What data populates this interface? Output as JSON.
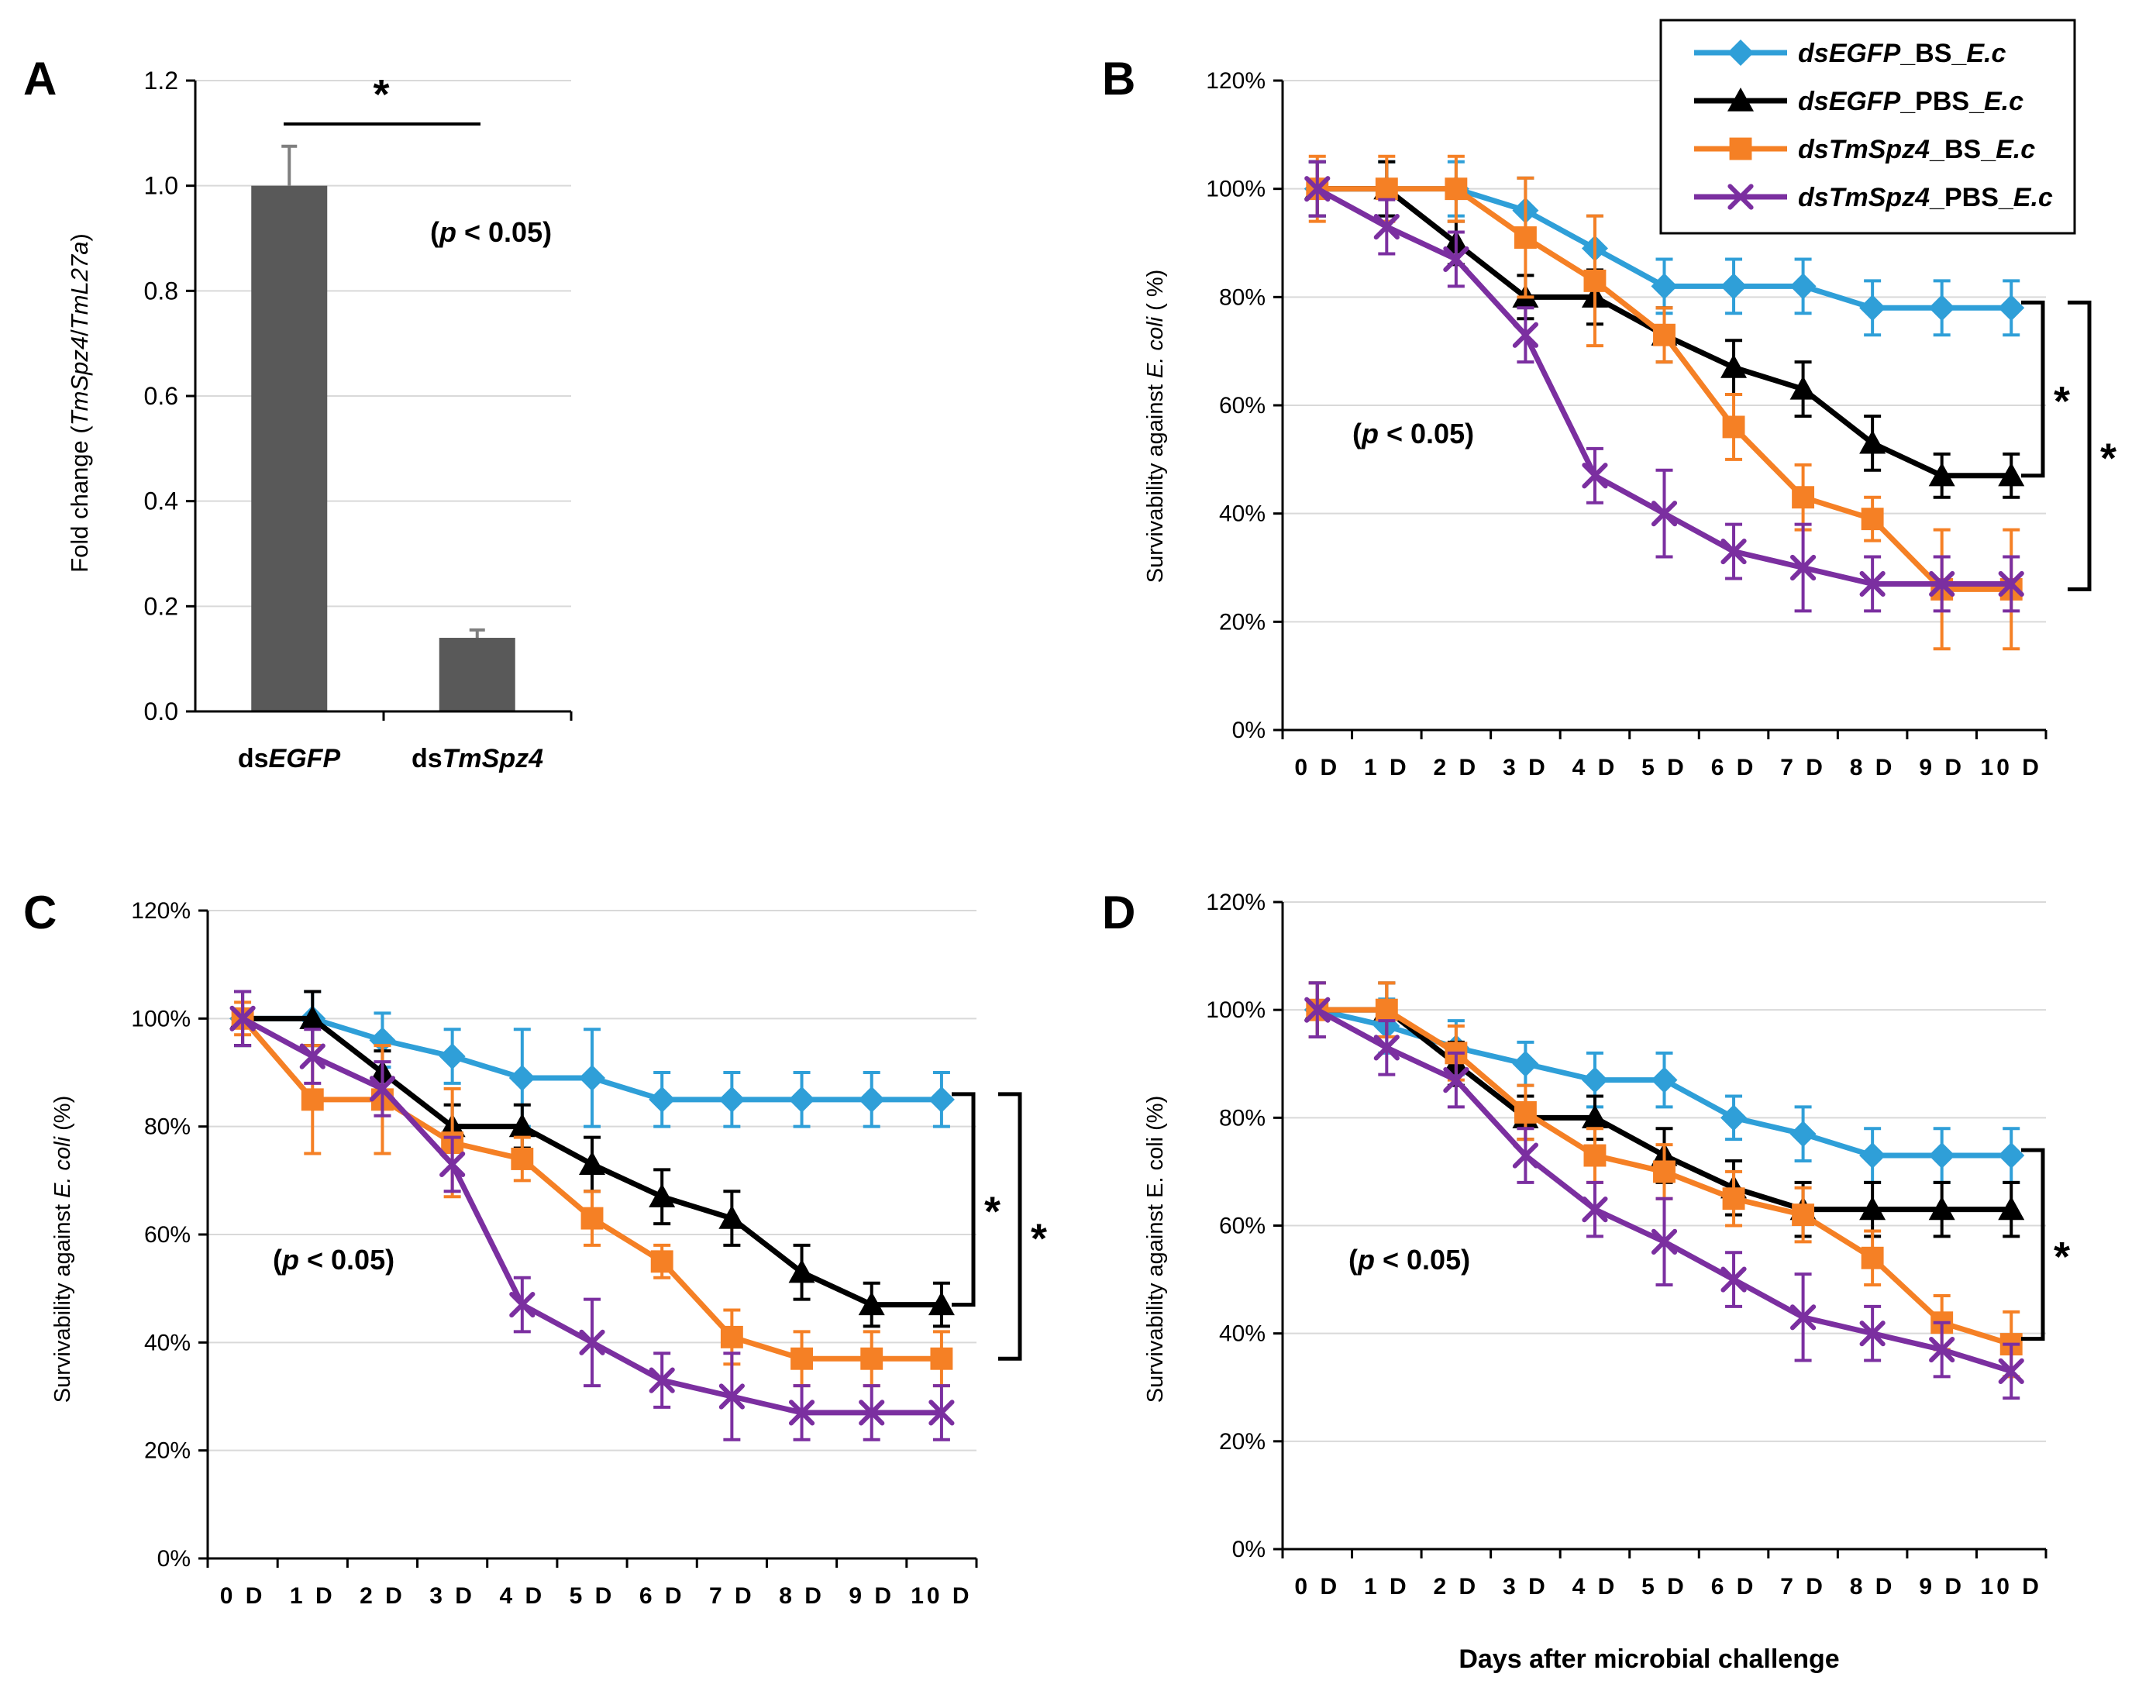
{
  "colors": {
    "egfp_bs": "#2F9FD8",
    "egfp_pbs": "#000000",
    "spz4_bs": "#F58025",
    "spz4_pbs": "#7B2FA0",
    "bar": "#595959",
    "grid": "#D9D9D9"
  },
  "legend": {
    "entries": [
      {
        "key": "egfp_bs",
        "prefix": "ds",
        "gene": "EGFP",
        "mid": "_BS_",
        "suffix": "E.c",
        "marker": "diamond"
      },
      {
        "key": "egfp_pbs",
        "prefix": "ds",
        "gene": "EGFP",
        "mid": "_PBS_",
        "suffix": "E.c",
        "marker": "triangle"
      },
      {
        "key": "spz4_bs",
        "prefix": "ds",
        "gene": "TmSpz4",
        "mid": "_BS_",
        "suffix": "E.c",
        "marker": "square"
      },
      {
        "key": "spz4_pbs",
        "prefix": "ds",
        "gene": "TmSpz4",
        "mid": "_PBS_",
        "suffix": "E.c",
        "marker": "x"
      }
    ]
  },
  "common_xlabel": "Days after microbial challenge",
  "chart_data": [
    {
      "panel": "A",
      "type": "bar",
      "ylabel": {
        "pre": "Fold change (",
        "i1": "TmSpz4",
        "sep": "/",
        "i2": "TmL27a",
        "post": ")"
      },
      "ylim": [
        0,
        1.2
      ],
      "yticks": [
        "0.0",
        "0.2",
        "0.4",
        "0.6",
        "0.8",
        "1.0",
        "1.2"
      ],
      "categories": [
        {
          "pre": "ds",
          "ital": "EGFP"
        },
        {
          "pre": "ds",
          "ital": "TmSpz4"
        }
      ],
      "values": [
        1.0,
        0.14
      ],
      "errors": [
        0.075,
        0.015
      ],
      "significance": "*",
      "pvalue": {
        "pre": "(",
        "ital": "p",
        "post": " < 0.05)"
      }
    },
    {
      "panel": "B",
      "type": "line",
      "ylabel": {
        "pre": "Survivability against ",
        "ital": "E. coli",
        "post": " ( %)"
      },
      "ylim": [
        0,
        120
      ],
      "yticks": [
        "0%",
        "20%",
        "40%",
        "60%",
        "80%",
        "100%",
        "120%"
      ],
      "categories": [
        "0 D",
        "1 D",
        "2 D",
        "3 D",
        "4 D",
        "5 D",
        "6 D",
        "7 D",
        "8 D",
        "9 D",
        "10 D"
      ],
      "series": [
        {
          "key": "egfp_bs",
          "values": [
            100,
            100,
            100,
            96,
            89,
            82,
            82,
            82,
            78,
            78,
            78
          ],
          "errors": [
            5,
            5,
            5,
            6,
            6,
            5,
            5,
            5,
            5,
            5,
            5
          ]
        },
        {
          "key": "egfp_pbs",
          "values": [
            100,
            100,
            90,
            80,
            80,
            73,
            67,
            63,
            53,
            47,
            47
          ],
          "errors": [
            5,
            5,
            4,
            4,
            5,
            5,
            5,
            5,
            5,
            4,
            4
          ]
        },
        {
          "key": "spz4_bs",
          "values": [
            100,
            100,
            100,
            91,
            83,
            73,
            56,
            43,
            39,
            26,
            26
          ],
          "errors": [
            6,
            6,
            6,
            11,
            12,
            5,
            6,
            6,
            4,
            11,
            11
          ]
        },
        {
          "key": "spz4_pbs",
          "values": [
            100,
            93,
            87,
            73,
            47,
            40,
            33,
            30,
            27,
            27,
            27
          ],
          "errors": [
            5,
            5,
            5,
            5,
            5,
            8,
            5,
            8,
            5,
            5,
            5
          ]
        }
      ],
      "brackets": [
        {
          "y1": 79,
          "y2": 47,
          "level": 0
        },
        {
          "y1": 79,
          "y2": 26,
          "level": 1
        }
      ],
      "significance": "*",
      "pvalue": {
        "pre": "(",
        "ital": "p",
        "post": " < 0.05)"
      }
    },
    {
      "panel": "C",
      "type": "line",
      "ylabel": {
        "pre": "Survivability against ",
        "ital": "E. coli",
        "post": " (%)"
      },
      "ylim": [
        0,
        120
      ],
      "yticks": [
        "0%",
        "20%",
        "40%",
        "60%",
        "80%",
        "100%",
        "120%"
      ],
      "categories": [
        "0 D",
        "1 D",
        "2 D",
        "3 D",
        "4 D",
        "5 D",
        "6 D",
        "7 D",
        "8 D",
        "9 D",
        "10 D"
      ],
      "series": [
        {
          "key": "egfp_bs",
          "values": [
            100,
            100,
            96,
            93,
            89,
            89,
            85,
            85,
            85,
            85,
            85
          ],
          "errors": [
            5,
            5,
            5,
            5,
            9,
            9,
            5,
            5,
            5,
            5,
            5
          ]
        },
        {
          "key": "egfp_pbs",
          "values": [
            100,
            100,
            90,
            80,
            80,
            73,
            67,
            63,
            53,
            47,
            47
          ],
          "errors": [
            5,
            5,
            4,
            4,
            4,
            5,
            5,
            5,
            5,
            4,
            4
          ]
        },
        {
          "key": "spz4_bs",
          "values": [
            100,
            85,
            85,
            77,
            74,
            63,
            55,
            41,
            37,
            37,
            37
          ],
          "errors": [
            3,
            10,
            10,
            10,
            4,
            5,
            3,
            5,
            5,
            5,
            5
          ]
        },
        {
          "key": "spz4_pbs",
          "values": [
            100,
            93,
            87,
            73,
            47,
            40,
            33,
            30,
            27,
            27,
            27
          ],
          "errors": [
            5,
            5,
            5,
            5,
            5,
            8,
            5,
            8,
            5,
            5,
            5
          ]
        }
      ],
      "brackets": [
        {
          "y1": 86,
          "y2": 47,
          "level": 0
        },
        {
          "y1": 86,
          "y2": 37,
          "level": 1
        }
      ],
      "significance": "*",
      "pvalue": {
        "pre": "(",
        "ital": "p",
        "post": " < 0.05)"
      }
    },
    {
      "panel": "D",
      "type": "line",
      "ylabel": {
        "pre": "Survivability against E. coli (%)",
        "ital": "",
        "post": ""
      },
      "ylim": [
        0,
        120
      ],
      "yticks": [
        "0%",
        "20%",
        "40%",
        "60%",
        "80%",
        "100%",
        "120%"
      ],
      "categories": [
        "0 D",
        "1 D",
        "2 D",
        "3 D",
        "4 D",
        "5 D",
        "6 D",
        "7 D",
        "8 D",
        "9 D",
        "10 D"
      ],
      "series": [
        {
          "key": "egfp_bs",
          "values": [
            100,
            97,
            93,
            90,
            87,
            87,
            80,
            77,
            73,
            73,
            73
          ],
          "errors": [
            5,
            5,
            5,
            4,
            5,
            5,
            4,
            5,
            5,
            5,
            5
          ]
        },
        {
          "key": "egfp_pbs",
          "values": [
            100,
            100,
            90,
            80,
            80,
            73,
            67,
            63,
            63,
            63,
            63
          ],
          "errors": [
            5,
            5,
            4,
            4,
            4,
            5,
            5,
            5,
            5,
            5,
            5
          ]
        },
        {
          "key": "spz4_bs",
          "values": [
            100,
            100,
            92,
            81,
            73,
            70,
            65,
            62,
            54,
            42,
            38
          ],
          "errors": [
            5,
            5,
            5,
            5,
            5,
            5,
            5,
            5,
            5,
            5,
            6
          ]
        },
        {
          "key": "spz4_pbs",
          "values": [
            100,
            93,
            87,
            73,
            63,
            57,
            50,
            43,
            40,
            37,
            33
          ],
          "errors": [
            5,
            5,
            5,
            5,
            5,
            8,
            5,
            8,
            5,
            5,
            5
          ]
        }
      ],
      "brackets": [
        {
          "y1": 74,
          "y2": 39,
          "level": 0
        }
      ],
      "significance": "*",
      "pvalue": {
        "pre": "(",
        "ital": "p",
        "post": " < 0.05)"
      }
    }
  ]
}
